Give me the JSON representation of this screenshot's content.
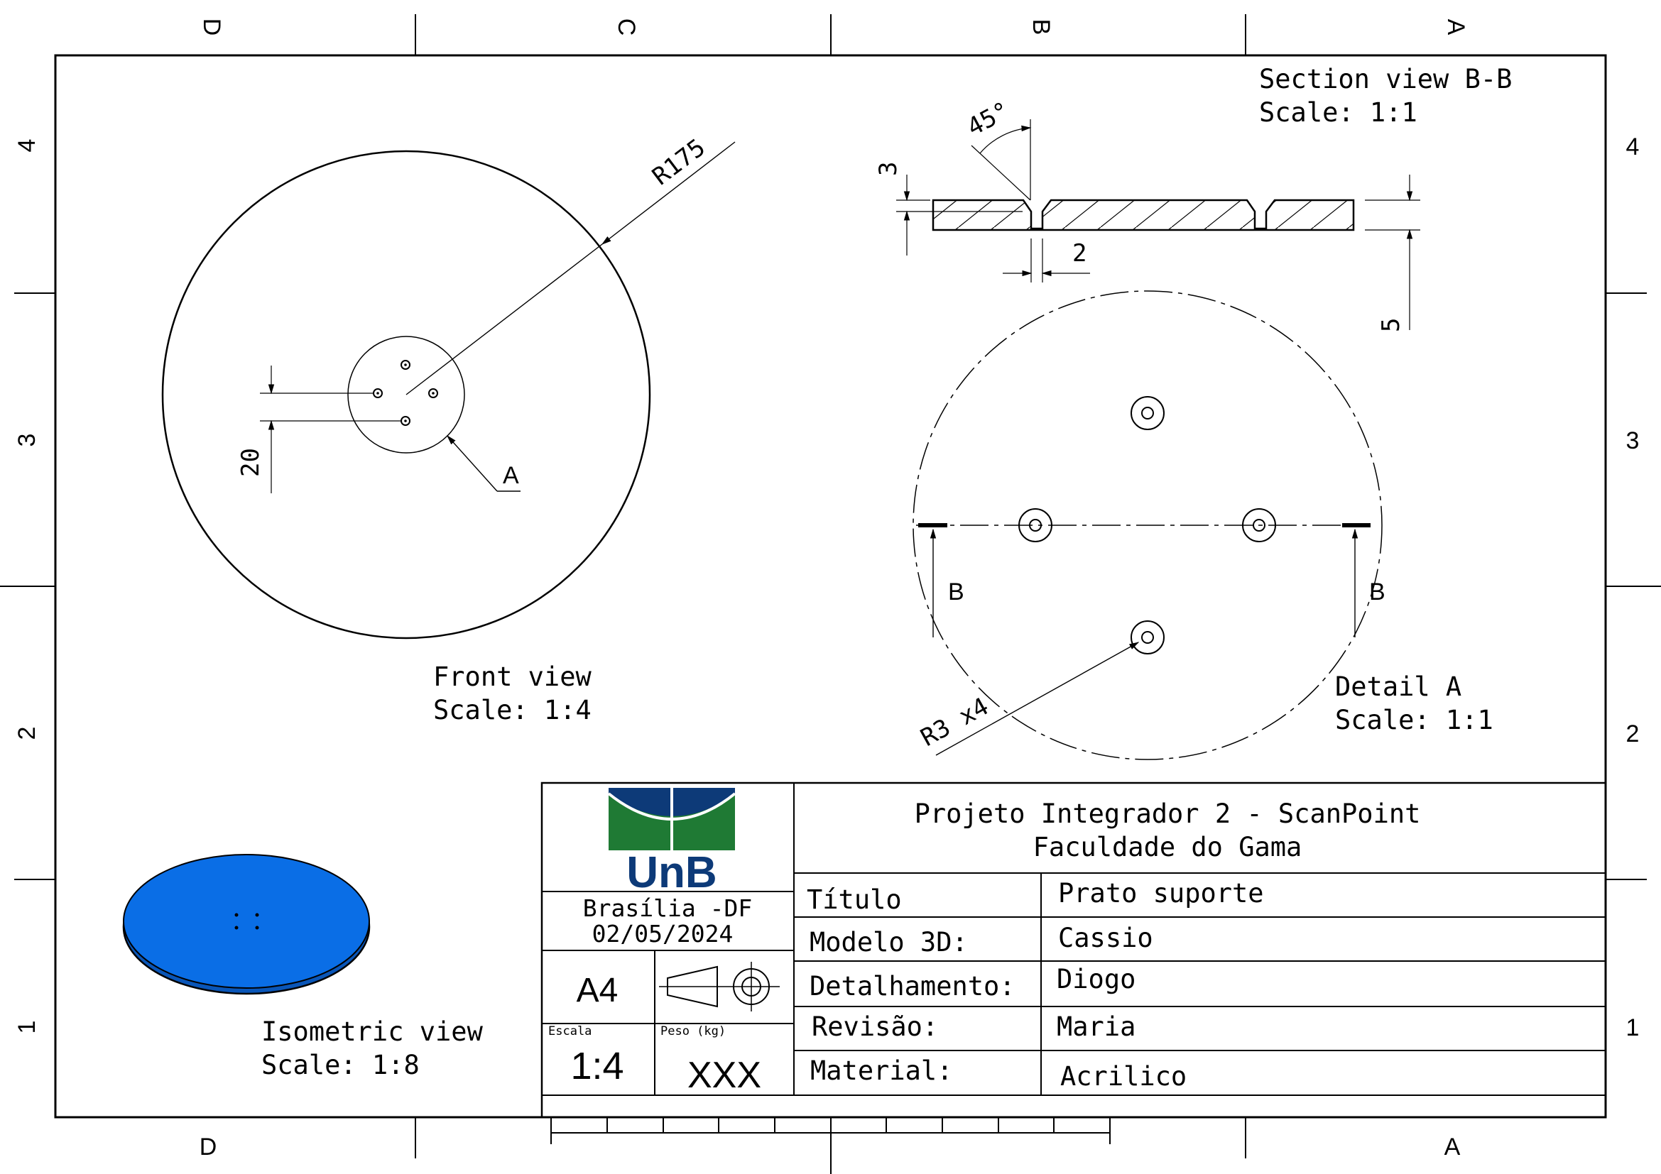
{
  "frame": {
    "col_letters_top": [
      "D",
      "C",
      "B",
      "A"
    ],
    "col_letters_bottom": [
      "D",
      "A"
    ],
    "row_numbers": [
      "4",
      "3",
      "2",
      "1"
    ]
  },
  "front_view": {
    "radius_label": "R175",
    "spacing_label": "20",
    "detail_callout": "A",
    "caption": "Front view",
    "scale": "Scale:  1:4"
  },
  "section_view": {
    "caption": "Section view B-B",
    "scale": "Scale:  1:1",
    "angle_label": "45°",
    "depth_label": "3",
    "hole_label": "2",
    "thickness_label": "5"
  },
  "detail_view": {
    "section_marker_left": "B",
    "section_marker_right": "B",
    "hole_radius_label": "R3  x4",
    "caption": "Detail A",
    "scale": "Scale:  1:1"
  },
  "isometric_view": {
    "caption": "Isometric view",
    "scale": "Scale:  1:8",
    "fill_color": "#0a6ee6"
  },
  "title_block": {
    "logo_text": "UnB",
    "logo_green": "#1f7a34",
    "logo_blue": "#0d3a78",
    "city": "Brasília -DF",
    "date": "02/05/2024",
    "sheet_size": "A4",
    "scale_label": "Escala",
    "scale_value": "1:4",
    "weight_label": "Peso (kg)",
    "weight_value": "XXX",
    "project_line1": "Projeto Integrador 2 - ScanPoint",
    "project_line2": "Faculdade do Gama",
    "rows": [
      {
        "label": "Título",
        "value": "Prato suporte"
      },
      {
        "label": "Modelo 3D:",
        "value": "Cassio"
      },
      {
        "label": "Detalhamento:",
        "value": "Diogo"
      },
      {
        "label": "Revisão:",
        "value": "Maria"
      },
      {
        "label": "Material:",
        "value": "Acrilico"
      }
    ]
  }
}
